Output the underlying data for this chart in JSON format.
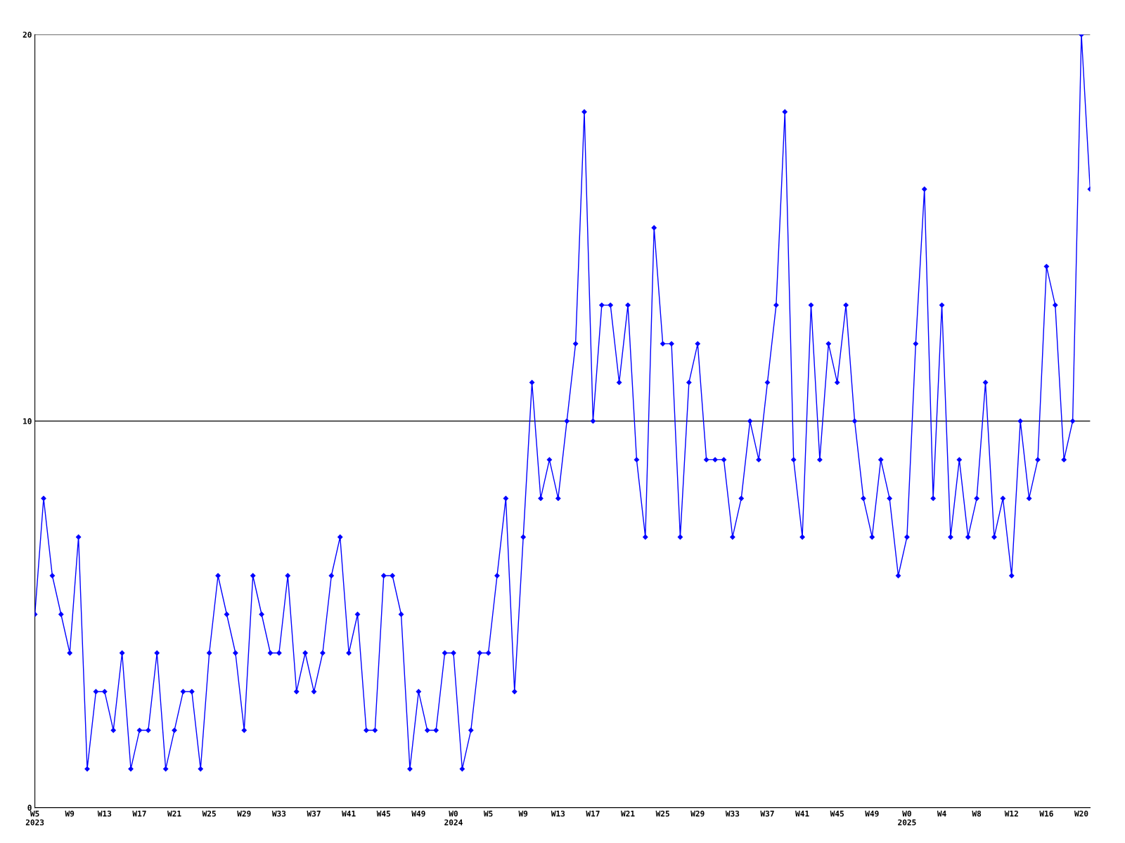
{
  "chart_data": {
    "type": "line",
    "categories": [
      "W5\n2023",
      null,
      null,
      null,
      "W9",
      null,
      null,
      null,
      "W13",
      null,
      null,
      null,
      "W17",
      null,
      null,
      null,
      "W21",
      null,
      null,
      null,
      "W25",
      null,
      null,
      null,
      "W29",
      null,
      null,
      null,
      "W33",
      null,
      null,
      null,
      "W37",
      null,
      null,
      null,
      "W41",
      null,
      null,
      null,
      "W45",
      null,
      null,
      null,
      "W49",
      null,
      null,
      null,
      "W0\n2024",
      null,
      null,
      null,
      "W5",
      null,
      null,
      null,
      "W9",
      null,
      null,
      null,
      "W13",
      null,
      null,
      null,
      "W17",
      null,
      null,
      null,
      "W21",
      null,
      null,
      null,
      "W25",
      null,
      null,
      null,
      "W29",
      null,
      null,
      null,
      "W33",
      null,
      null,
      null,
      "W37",
      null,
      null,
      null,
      "W41",
      null,
      null,
      null,
      "W45",
      null,
      null,
      null,
      "W49",
      null,
      null,
      null,
      "W0\n2025",
      null,
      null,
      null,
      "W4",
      null,
      null,
      null,
      "W8",
      null,
      null,
      null,
      "W12",
      null,
      null,
      null,
      "W16",
      null,
      null,
      null,
      "W20",
      null
    ],
    "series": [
      {
        "color": "#0000ff",
        "values": [
          5,
          8,
          6,
          5,
          4,
          7,
          1,
          3,
          3,
          2,
          4,
          1,
          2,
          2,
          4,
          1,
          2,
          3,
          3,
          1,
          4,
          6,
          5,
          4,
          2,
          6,
          5,
          4,
          4,
          6,
          3,
          4,
          3,
          4,
          6,
          7,
          4,
          5,
          2,
          2,
          6,
          6,
          5,
          1,
          3,
          2,
          2,
          4,
          4,
          1,
          2,
          4,
          4,
          6,
          8,
          3,
          7,
          11,
          8,
          9,
          8,
          10,
          12,
          18,
          10,
          13,
          13,
          11,
          13,
          9,
          7,
          15,
          12,
          12,
          7,
          11,
          12,
          9,
          9,
          9,
          7,
          8,
          10,
          9,
          11,
          13,
          18,
          9,
          7,
          13,
          9,
          12,
          11,
          13,
          10,
          8,
          7,
          9,
          8,
          6,
          7,
          12,
          16,
          8,
          13,
          7,
          9,
          7,
          8,
          11,
          7,
          8,
          6,
          10,
          8,
          9,
          14,
          13,
          9,
          10,
          20,
          16
        ]
      }
    ],
    "ylim": [
      0,
      20
    ],
    "yticks": [
      0,
      10,
      20
    ],
    "grid": "y",
    "marker": "diamond",
    "line_style": "solid",
    "legend": false
  }
}
